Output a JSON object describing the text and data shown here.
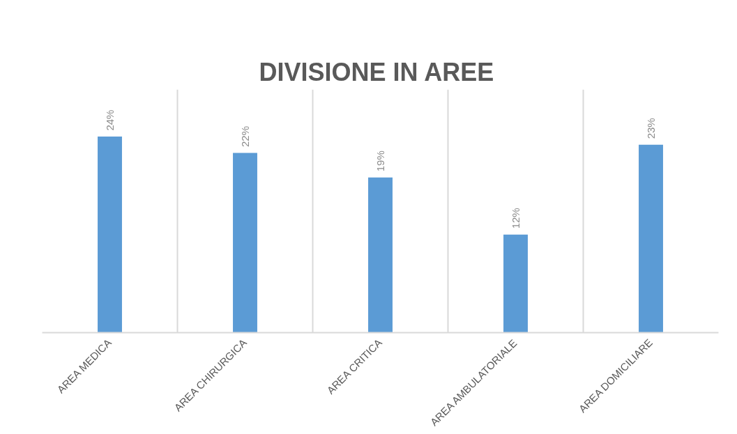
{
  "chart_data": {
    "type": "bar",
    "title": "DIVISIONE  IN AREE",
    "categories": [
      "AREA MEDICA",
      "AREA CHIRURGICA",
      "AREA CRITICA",
      "AREA AMBULATORIALE",
      "AREA DOMICILIARE"
    ],
    "values": [
      24,
      22,
      19,
      12,
      23
    ],
    "value_labels": [
      "24%",
      "22%",
      "19%",
      "12%",
      "23%"
    ],
    "color": "#5b9bd5",
    "grid": "x"
  }
}
